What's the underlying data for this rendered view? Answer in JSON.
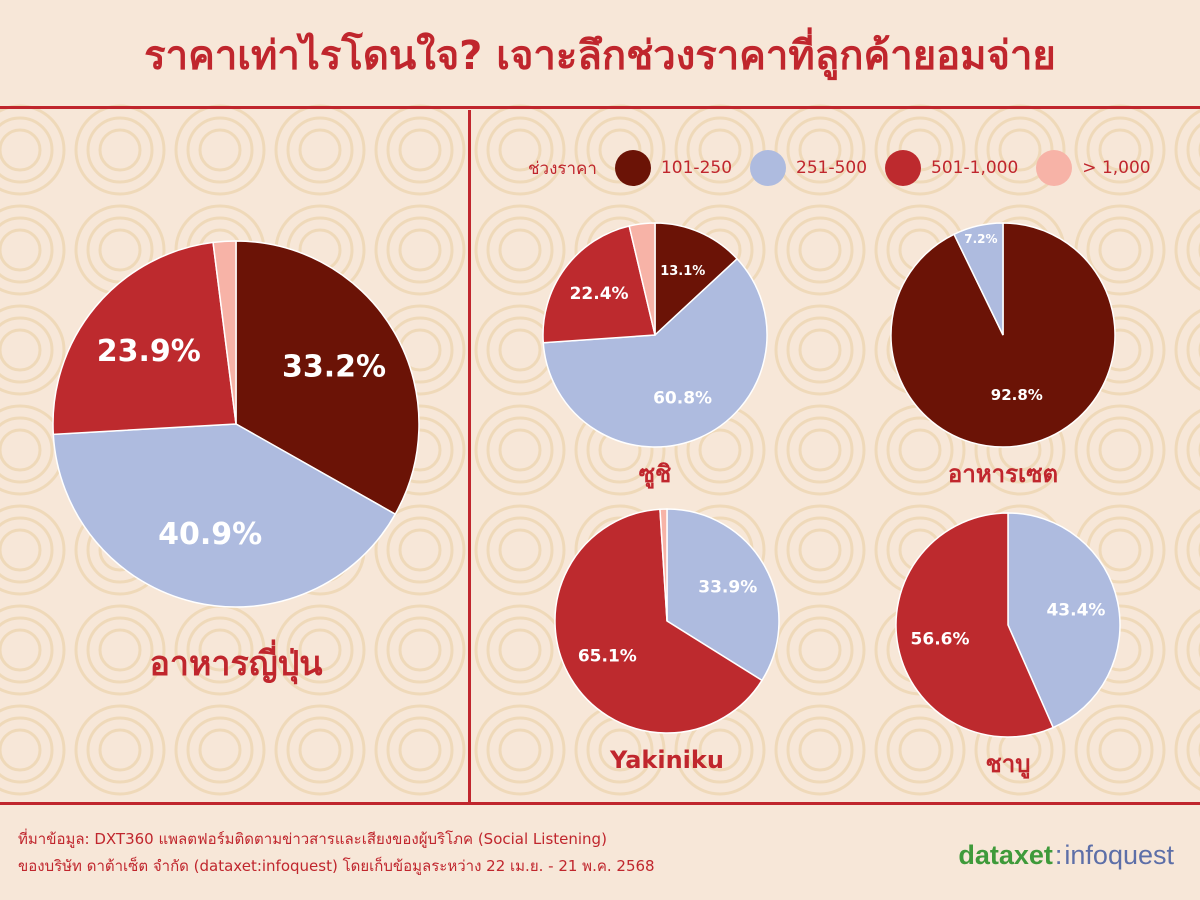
{
  "header": {
    "title": "ราคาเท่าไรโดนใจ? เจาะลึกช่วงราคาที่ลูกค้ายอมจ่าย"
  },
  "legend": {
    "title": "ช่วงราคา",
    "items": [
      {
        "label": "101-250",
        "color": "#6b1306"
      },
      {
        "label": "251-500",
        "color": "#aebbdf"
      },
      {
        "label": "501-1,000",
        "color": "#bd2a2e"
      },
      {
        "label": "> 1,000",
        "color": "#f7b3a7"
      }
    ]
  },
  "chart_data": [
    {
      "type": "pie",
      "title": "อาหารญี่ปุ่น",
      "categories": [
        "101-250",
        "251-500",
        "501-1,000",
        "> 1,000"
      ],
      "values": [
        33.2,
        40.9,
        23.9,
        2.0
      ],
      "labels": [
        "33.2%",
        "40.9%",
        "23.9%",
        ""
      ]
    },
    {
      "type": "pie",
      "title": "ซูชิ",
      "categories": [
        "101-250",
        "251-500",
        "501-1,000",
        "> 1,000"
      ],
      "values": [
        13.1,
        60.8,
        22.4,
        3.7
      ],
      "labels": [
        "13.1%",
        "60.8%",
        "22.4%",
        ""
      ]
    },
    {
      "type": "pie",
      "title": "อาหารเซต",
      "categories": [
        "101-250",
        "251-500"
      ],
      "values": [
        92.8,
        7.2
      ],
      "labels": [
        "92.8%",
        "7.2%"
      ]
    },
    {
      "type": "pie",
      "title": "Yakiniku",
      "categories": [
        "251-500",
        "501-1,000",
        "> 1,000"
      ],
      "values": [
        33.9,
        65.1,
        1.0
      ],
      "labels": [
        "33.9%",
        "65.1%",
        ""
      ]
    },
    {
      "type": "pie",
      "title": "ชาบู",
      "categories": [
        "251-500",
        "501-1,000"
      ],
      "values": [
        43.4,
        56.6
      ],
      "labels": [
        "43.4%",
        "56.6%"
      ]
    }
  ],
  "footer": {
    "source_line1": "ที่มาข้อมูล: DXT360 แพลตฟอร์มติดตามข่าวสารและเสียงของผู้บริโภค (Social Listening)",
    "source_line2": "ของบริษัท ดาต้าเซ็ต จำกัด (dataxet:infoquest) โดยเก็บข้อมูลระหว่าง  22 เม.ย. - 21 พ.ค. 2568",
    "logo_left": "dataxet",
    "logo_sep": ":",
    "logo_right": "infoquest"
  },
  "colors": {
    "accent": "#c0262d",
    "background": "#f7e7d8",
    "pattern": "#efd9b9"
  }
}
